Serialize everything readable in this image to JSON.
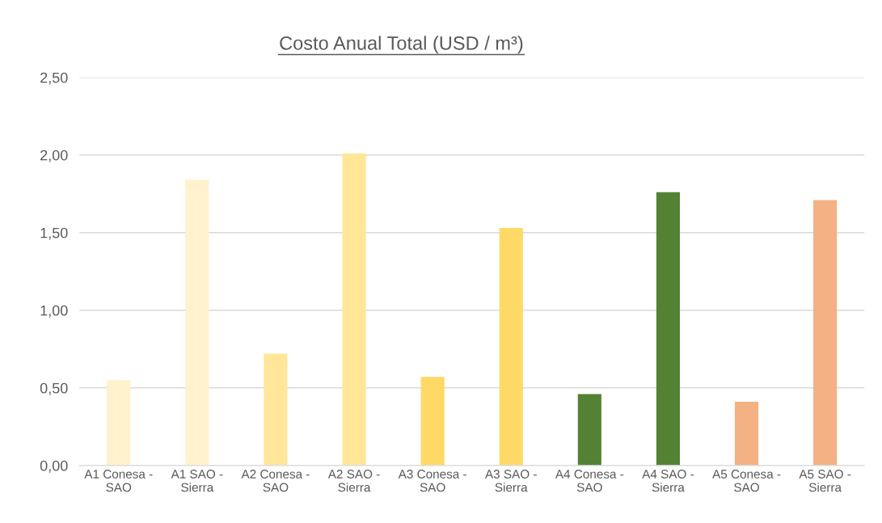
{
  "chart_data": {
    "type": "bar",
    "title": "Costo Anual Total (USD / m³)",
    "categories": [
      "A1 Conesa -\nSAO",
      "A1 SAO -\nSierra",
      "A2 Conesa -\nSAO",
      "A2 SAO -\nSierra",
      "A3 Conesa -\nSAO",
      "A3 SAO -\nSierra",
      "A4 Conesa -\nSAO",
      "A4 SAO -\nSierra",
      "A5 Conesa -\nSAO",
      "A5 SAO -\nSierra"
    ],
    "values": [
      0.55,
      1.84,
      0.72,
      2.01,
      0.57,
      1.53,
      0.46,
      1.76,
      0.41,
      1.71
    ],
    "colors": [
      "#fff2cc",
      "#fff2cc",
      "#ffe699",
      "#ffe699",
      "#ffd966",
      "#ffd966",
      "#548235",
      "#548235",
      "#f4b183",
      "#f4b183"
    ],
    "ylim": [
      0,
      2.5
    ],
    "yticks": [
      {
        "value": 0,
        "label": "0,00"
      },
      {
        "value": 0.5,
        "label": "0,50"
      },
      {
        "value": 1.0,
        "label": "1,00"
      },
      {
        "value": 1.5,
        "label": "1,50"
      },
      {
        "value": 2.0,
        "label": "2,00"
      },
      {
        "value": 2.5,
        "label": "2,50"
      }
    ],
    "grid": "y",
    "legend": false
  }
}
